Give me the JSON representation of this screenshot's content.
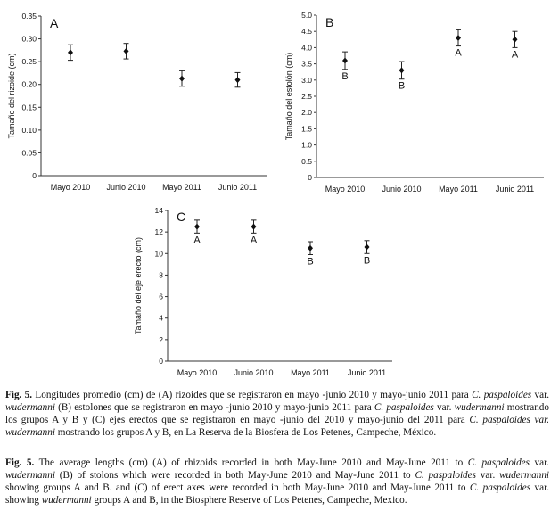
{
  "chart_data": [
    {
      "type": "scatter",
      "panel_label": "A",
      "ylabel": "Tamaño del rizoide (cm)",
      "ylim": [
        0,
        0.35
      ],
      "yticks": [
        "0",
        "0.05",
        "0.10",
        "0.15",
        "0.20",
        "0.25",
        "0.30",
        "0.35"
      ],
      "categories": [
        "Mayo 2010",
        "Junio 2010",
        "Mayo 2011",
        "Junio 2011"
      ],
      "values": [
        0.27,
        0.273,
        0.213,
        0.21
      ],
      "error": [
        0.017,
        0.017,
        0.017,
        0.016
      ],
      "group_labels": [
        "",
        "",
        "",
        ""
      ],
      "error_bars": true,
      "grid": false
    },
    {
      "type": "scatter",
      "panel_label": "B",
      "ylabel": "Tamaño del estolón (cm)",
      "ylim": [
        0,
        5.0
      ],
      "yticks": [
        "0",
        "0.5",
        "1.0",
        "1.5",
        "2.0",
        "2.5",
        "3.0",
        "3.5",
        "4.0",
        "4.5",
        "5.0"
      ],
      "categories": [
        "Mayo 2010",
        "Junio 2010",
        "Mayo 2011",
        "Junio 2011"
      ],
      "values": [
        3.6,
        3.3,
        4.3,
        4.25
      ],
      "error": [
        0.27,
        0.27,
        0.25,
        0.25
      ],
      "group_labels": [
        "B",
        "B",
        "A",
        "A"
      ],
      "error_bars": true,
      "grid": false
    },
    {
      "type": "scatter",
      "panel_label": "C",
      "ylabel": "Tamaño del eje erecto (cm)",
      "ylim": [
        0,
        14
      ],
      "yticks": [
        "0",
        "2",
        "4",
        "6",
        "8",
        "10",
        "12",
        "14"
      ],
      "categories": [
        "Mayo 2010",
        "Junio 2010",
        "Mayo 2011",
        "Junio 2011"
      ],
      "values": [
        12.5,
        12.5,
        10.5,
        10.6
      ],
      "error": [
        0.6,
        0.6,
        0.6,
        0.6
      ],
      "group_labels": [
        "A",
        "A",
        "B",
        "B"
      ],
      "error_bars": true,
      "grid": false
    }
  ],
  "caption_es": {
    "fig": "Fig. 5.",
    "p1": " Longitudes promedio (cm) de (A) rizoides que se registraron en mayo -junio 2010 y mayo-junio 2011 para ",
    "i1": "C. paspaloides",
    "p2": " var. ",
    "i2": "wudermanni",
    "p3": " (B) estolones que se registraron en mayo -junio 2010 y mayo-junio 2011 para ",
    "i3": "C. paspaloides",
    "p4": " var. ",
    "i4": "wudermanni",
    "p5": " mostrando los grupos A y B y (C) ejes erectos que se registraron en mayo -junio del 2010 y mayo-junio del 2011 para ",
    "i5": "C. paspaloides var. wudermanni",
    "p6": " mostrando los grupos A y B, en La Reserva de la Biosfera de Los Petenes, Campeche, México."
  },
  "caption_en": {
    "fig": "Fig. 5.",
    "p1": " The average lengths (cm) (A) of rhizoids recorded in both May-June 2010 and May-June 2011 to ",
    "i1": "C. paspaloides",
    "p2": " var. ",
    "i2": "wudermanni",
    "p3": " (B) of stolons which were recorded in both May-June 2010 and May-June 2011 to ",
    "i3": "C. paspaloides",
    "p4": " var. ",
    "i4": "wudermanni",
    "p5": " showing groups A and B. and (C) of erect axes were recorded in both May-June 2010 and May-June 2011 to ",
    "i5": "C. paspaloides",
    "p6": " var. showing ",
    "i6": "wudermanni",
    "p7": " groups A and B, in the Biosphere Reserve of Los Petenes, Campeche, Mexico."
  }
}
